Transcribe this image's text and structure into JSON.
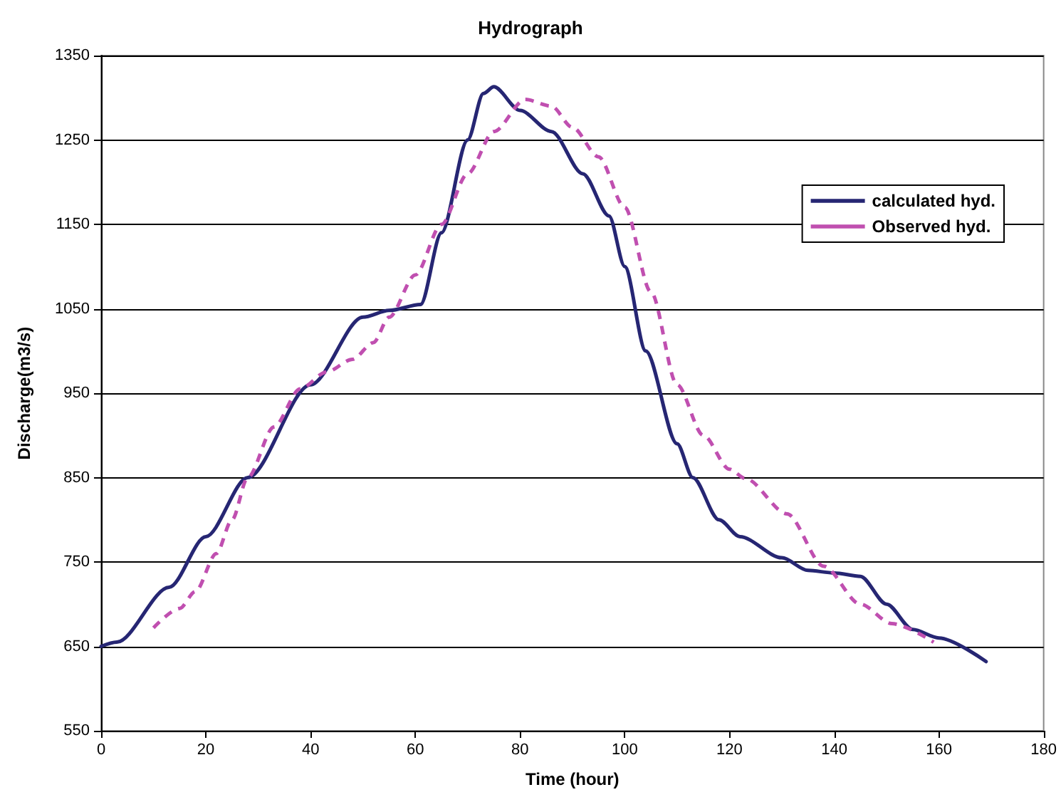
{
  "chart_data": {
    "type": "line",
    "title": "Hydrograph",
    "xlabel": "Time (hour)",
    "ylabel": "Discharge(m3/s)",
    "xlim": [
      0,
      180
    ],
    "xticks": [
      0,
      20,
      40,
      60,
      80,
      100,
      120,
      140,
      160,
      180
    ],
    "ylim": [
      550,
      1350
    ],
    "yticks": [
      550,
      650,
      750,
      850,
      950,
      1050,
      1150,
      1250,
      1350
    ],
    "grid": "y",
    "legend": "top right",
    "marker": "none",
    "series": [
      {
        "name": "calculated hyd.",
        "color": "#262673",
        "line_style": "solid",
        "x": [
          0,
          3,
          13,
          20,
          28,
          40,
          50,
          55,
          61,
          65,
          70,
          73,
          75,
          80,
          86,
          92,
          97,
          100,
          104,
          110,
          113,
          118,
          122,
          130,
          135,
          140,
          145,
          150,
          155,
          160,
          169
        ],
        "values": [
          650,
          655,
          720,
          780,
          850,
          960,
          1040,
          1048,
          1055,
          1140,
          1250,
          1305,
          1313,
          1285,
          1260,
          1210,
          1160,
          1100,
          1000,
          890,
          850,
          800,
          780,
          755,
          740,
          737,
          733,
          700,
          670,
          660,
          632
        ]
      },
      {
        "name": "Observed hyd.",
        "color": "#c04fb0",
        "line_style": "dashed",
        "x": [
          10,
          15,
          18,
          22,
          25,
          28,
          33,
          38,
          43,
          48,
          52,
          55,
          60,
          65,
          70,
          75,
          81,
          86,
          90,
          95,
          100,
          105,
          110,
          115,
          120,
          123,
          131,
          138,
          145,
          151,
          159
        ],
        "values": [
          672,
          695,
          715,
          760,
          800,
          850,
          910,
          955,
          975,
          990,
          1010,
          1040,
          1090,
          1150,
          1210,
          1260,
          1298,
          1290,
          1265,
          1230,
          1170,
          1070,
          960,
          900,
          860,
          849,
          807,
          745,
          700,
          677,
          655
        ]
      }
    ]
  }
}
